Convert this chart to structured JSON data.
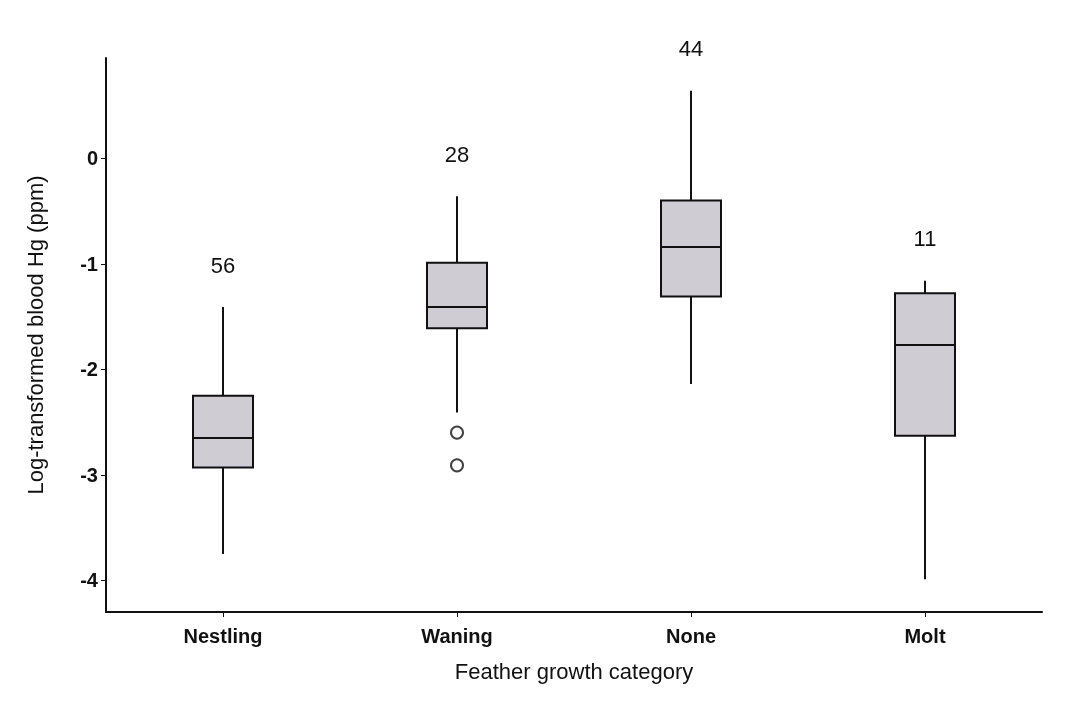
{
  "chart_data": {
    "type": "box",
    "xlabel": "Feather growth category",
    "ylabel": "Log-transformed blood Hg (ppm)",
    "categories": [
      "Nestling",
      "Waning",
      "None",
      "Molt"
    ],
    "series": [
      {
        "color": "#cfccd4",
        "boxes": [
          {
            "low": -3.75,
            "q1": -2.93,
            "median": -2.65,
            "q3": -2.25,
            "high": -1.41
          },
          {
            "low": -2.41,
            "q1": -1.61,
            "median": -1.41,
            "q3": -0.99,
            "high": -0.36,
            "outliers": [
              -2.6,
              -2.91
            ]
          },
          {
            "low": -2.14,
            "q1": -1.31,
            "median": -0.84,
            "q3": -0.4,
            "high": 0.64
          },
          {
            "low": -3.99,
            "q1": -2.63,
            "median": -1.77,
            "q3": -1.28,
            "high": -1.16
          }
        ]
      }
    ],
    "ylim": [
      -4.3,
      0.95
    ],
    "yticks": [
      -4,
      -3,
      -2,
      -1,
      0
    ],
    "grid": false,
    "marker": "circle",
    "annotations": [
      "56",
      "28",
      "44",
      "11"
    ]
  }
}
